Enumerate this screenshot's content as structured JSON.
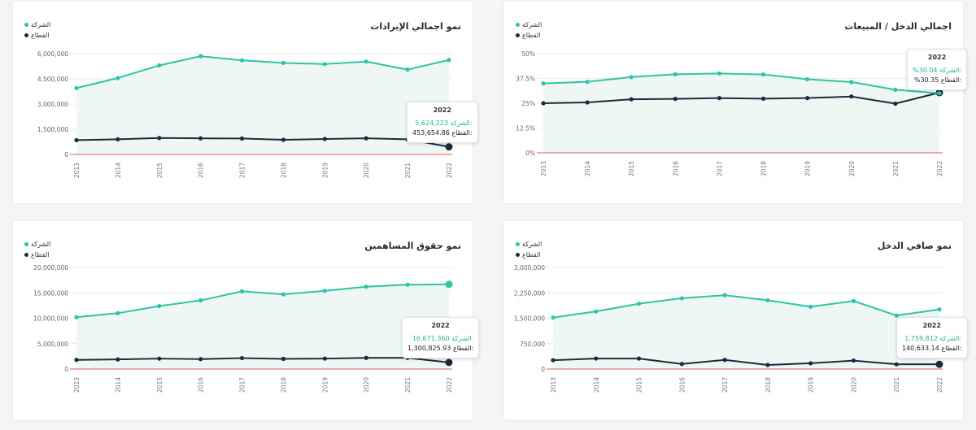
{
  "colors": {
    "company": "#2ec4a6",
    "sector": "#1c2b3c",
    "zero_line": "#e05b5b",
    "area": "#eef7f4",
    "grid": "#e8eaed"
  },
  "legend": {
    "company": "الشركة",
    "sector": "القطاع"
  },
  "charts": [
    {
      "id": "revenue",
      "title": "نمو اجمالي الإيرادات",
      "chart_data": {
        "type": "line",
        "title": "نمو اجمالي الإيرادات",
        "x": [
          "2013",
          "2014",
          "2015",
          "2016",
          "2017",
          "2018",
          "2019",
          "2020",
          "2021",
          "2022"
        ],
        "series": [
          {
            "name": "الشركة",
            "values": [
              3950000,
              4550000,
              5300000,
              5850000,
              5600000,
              5450000,
              5380000,
              5530000,
              5050000,
              5624223
            ]
          },
          {
            "name": "القطاع",
            "values": [
              850000,
              900000,
              980000,
              960000,
              950000,
              870000,
              920000,
              960000,
              900000,
              453654.86
            ]
          }
        ],
        "ylim": [
          0,
          6000000
        ],
        "yticks": [
          0,
          1500000,
          3000000,
          4500000,
          6000000
        ],
        "ytick_labels": [
          "0",
          "1,500,000",
          "3,000,000",
          "4,500,000",
          "6,000,000"
        ]
      },
      "tooltip": {
        "year": "2022",
        "company_label": "الشركة:",
        "company_value": "5,624,223",
        "sector_label": "القطاع:",
        "sector_value": "453,654.86"
      }
    },
    {
      "id": "gross-margin",
      "title": "اجمالي الدخل / المبيعات",
      "chart_data": {
        "type": "line",
        "title": "اجمالي الدخل / المبيعات",
        "x": [
          "2013",
          "2014",
          "2015",
          "2016",
          "2017",
          "2018",
          "2019",
          "2020",
          "2021",
          "2022"
        ],
        "series": [
          {
            "name": "الشركة",
            "values": [
              35,
              35.8,
              38.2,
              39.6,
              40,
              39.5,
              37.1,
              35.7,
              31.8,
              30.04
            ]
          },
          {
            "name": "القطاع",
            "values": [
              25,
              25.4,
              27,
              27.2,
              27.6,
              27.3,
              27.6,
              28.4,
              24.8,
              30.35
            ]
          }
        ],
        "ylim": [
          0,
          50
        ],
        "yticks": [
          0,
          12.5,
          25,
          37.5,
          50
        ],
        "ytick_labels": [
          "0%",
          "12.5%",
          "25%",
          "37.5%",
          "50%"
        ]
      },
      "tooltip": {
        "year": "2022",
        "company_label": "الشركة:",
        "company_value": "%30.04",
        "sector_label": "القطاع:",
        "sector_value": "%30.35"
      }
    },
    {
      "id": "equity",
      "title": "نمو حقوق المساهمين",
      "chart_data": {
        "type": "line",
        "title": "نمو حقوق المساهمين",
        "x": [
          "2013",
          "2014",
          "2015",
          "2016",
          "2017",
          "2018",
          "2019",
          "2020",
          "2021",
          "2022"
        ],
        "series": [
          {
            "name": "الشركة",
            "values": [
              10200000,
              11000000,
              12400000,
              13500000,
              15300000,
              14700000,
              15400000,
              16200000,
              16600000,
              16671360
            ]
          },
          {
            "name": "القطاع",
            "values": [
              1800000,
              1900000,
              2050000,
              1950000,
              2150000,
              2000000,
              2050000,
              2200000,
              2200000,
              1300825.93
            ]
          }
        ],
        "ylim": [
          0,
          20000000
        ],
        "yticks": [
          0,
          5000000,
          10000000,
          15000000,
          20000000
        ],
        "ytick_labels": [
          "0",
          "5,000,000",
          "10,000,000",
          "15,000,000",
          "20,000,000"
        ]
      },
      "tooltip": {
        "year": "2022",
        "company_label": "الشركة:",
        "company_value": "16,671,360",
        "sector_label": "القطاع:",
        "sector_value": "1,300,825.93"
      }
    },
    {
      "id": "net-income",
      "title": "نمو صافي الدخل",
      "chart_data": {
        "type": "line",
        "title": "نمو صافي الدخل",
        "x": [
          "2013",
          "2014",
          "2015",
          "2016",
          "2017",
          "2018",
          "2019",
          "2020",
          "2021",
          "2022"
        ],
        "series": [
          {
            "name": "الشركة",
            "values": [
              1520000,
              1700000,
              1930000,
              2090000,
              2180000,
              2030000,
              1840000,
              2010000,
              1580000,
              1759812
            ]
          },
          {
            "name": "القطاع",
            "values": [
              260000,
              310000,
              310000,
              150000,
              270000,
              120000,
              170000,
              250000,
              140000,
              140633.14
            ]
          }
        ],
        "ylim": [
          0,
          3000000
        ],
        "yticks": [
          0,
          750000,
          1500000,
          2250000,
          3000000
        ],
        "ytick_labels": [
          "0",
          "750,000",
          "1,500,000",
          "2,250,000",
          "3,000,000"
        ]
      },
      "tooltip": {
        "year": "2022",
        "company_label": "الشركة:",
        "company_value": "1,759,812",
        "sector_label": "القطاع:",
        "sector_value": "140,633.14"
      }
    }
  ]
}
